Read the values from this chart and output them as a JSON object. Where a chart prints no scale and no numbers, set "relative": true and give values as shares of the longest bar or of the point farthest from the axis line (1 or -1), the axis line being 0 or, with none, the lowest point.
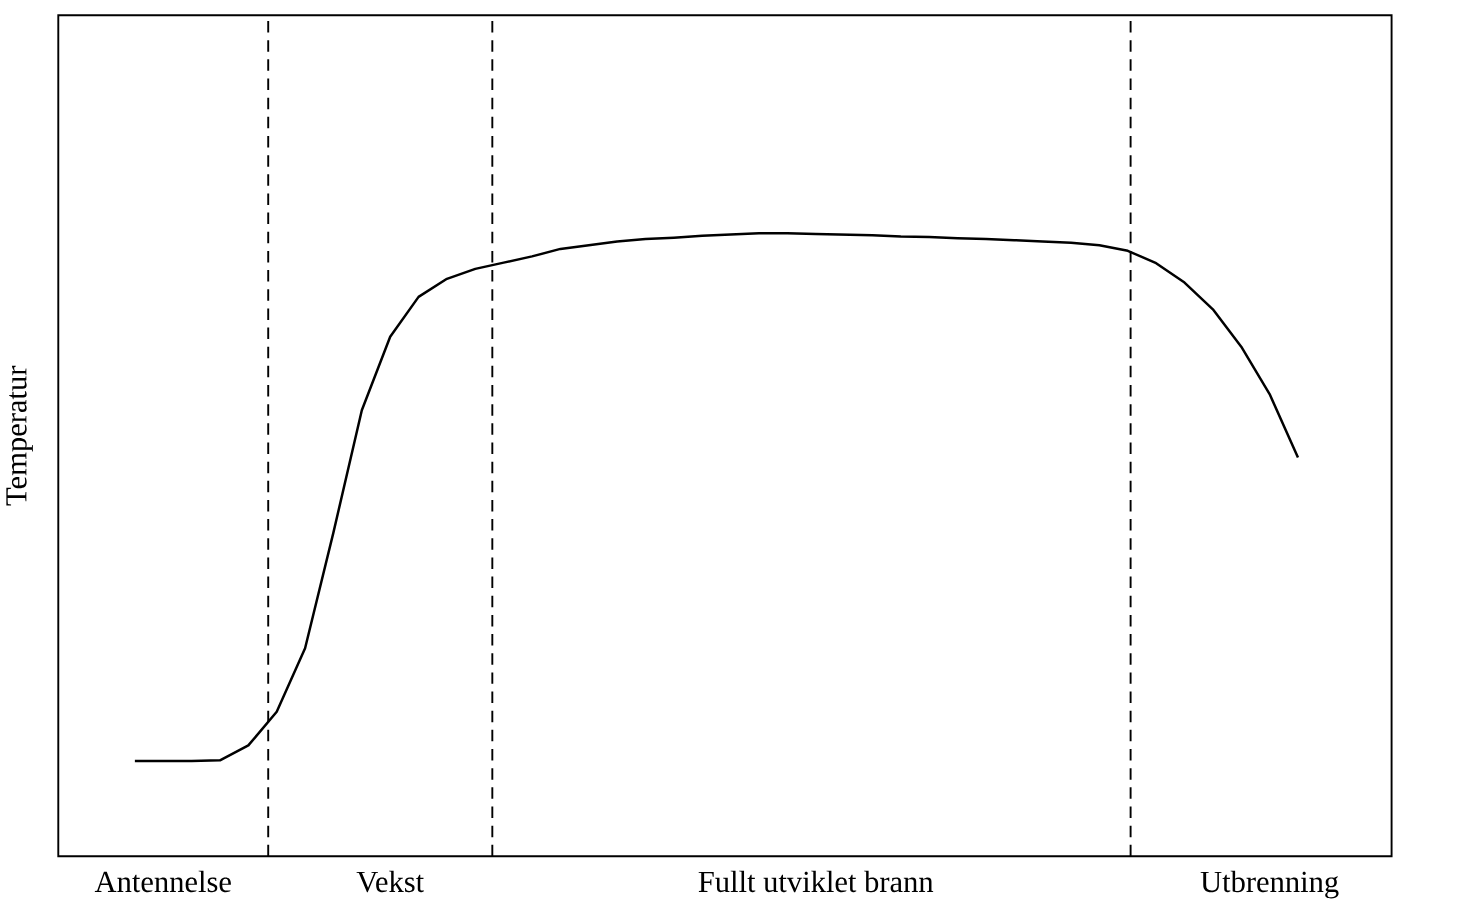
{
  "chart_data": {
    "type": "line",
    "relative": true,
    "ylabel": "Temperatur",
    "categories": [
      null,
      "Antennelse",
      null,
      null,
      null,
      null,
      null,
      null,
      null,
      "Vekst",
      null,
      null,
      null,
      null,
      null,
      null,
      null,
      null,
      null,
      null,
      null,
      null,
      null,
      null,
      "Fullt utviklet brann",
      null,
      null,
      null,
      null,
      null,
      null,
      null,
      null,
      null,
      null,
      null,
      null,
      null,
      null,
      null,
      "Utbrenning",
      null
    ],
    "values": [
      0.153,
      0.153,
      0.153,
      0.154,
      0.178,
      0.232,
      0.334,
      0.52,
      0.716,
      0.834,
      0.898,
      0.927,
      0.943,
      0.953,
      0.963,
      0.975,
      0.981,
      0.987,
      0.991,
      0.993,
      0.996,
      0.998,
      1.0,
      1.0,
      0.999,
      0.998,
      0.997,
      0.995,
      0.994,
      0.992,
      0.991,
      0.989,
      0.987,
      0.985,
      0.981,
      0.972,
      0.952,
      0.921,
      0.878,
      0.818,
      0.742,
      0.64
    ],
    "color": "#000000",
    "line_style": "solid"
  }
}
